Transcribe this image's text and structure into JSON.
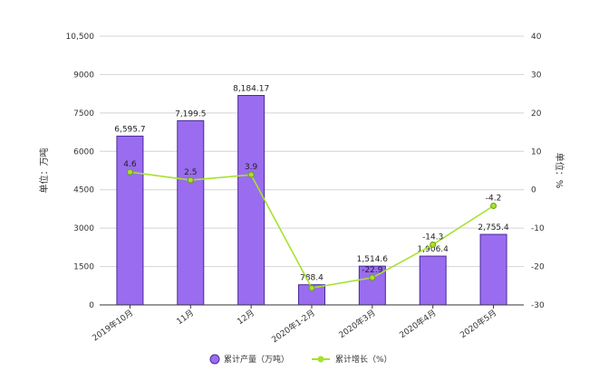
{
  "chart_data": {
    "type": "bar",
    "categories": [
      "2019年10月",
      "11月",
      "12月",
      "2020年1-2月",
      "2020年3月",
      "2020年4月",
      "2020年5月"
    ],
    "series": [
      {
        "name": "累计产量（万吨）",
        "type": "bar",
        "axis": "left",
        "color": "#9a6cf0",
        "values": [
          6595.7,
          7199.5,
          8184.17,
          788.4,
          1514.6,
          1906.4,
          2755.4
        ],
        "labels": [
          "6,595.7",
          "7,199.5",
          "8,184.17",
          "788.4",
          "1,514.6",
          "1,906.4",
          "2,755.4"
        ]
      },
      {
        "name": "累计增长（%）",
        "type": "line",
        "axis": "right",
        "color": "#a6e22e",
        "values": [
          4.6,
          2.5,
          3.9,
          -25.6,
          -22.9,
          -14.3,
          -4.2
        ],
        "labels": [
          "4.6",
          "2.5",
          "3.9",
          "",
          "-22.9",
          "-14.3",
          "-4.2"
        ]
      }
    ],
    "ylabel": "单位：万吨",
    "y2label": "单位：%",
    "ylim": [
      0,
      10500
    ],
    "y2lim": [
      -30,
      40
    ],
    "yticks": [
      0,
      1500,
      3000,
      4500,
      6000,
      7500,
      9000,
      10500
    ],
    "ytick_labels": [
      "0",
      "1500",
      "3000",
      "4500",
      "6000",
      "7500",
      "9000",
      "10,500"
    ],
    "y2ticks": [
      -30,
      -20,
      -10,
      0,
      10,
      20,
      30,
      40
    ],
    "grid": true,
    "legend": "bottom"
  }
}
